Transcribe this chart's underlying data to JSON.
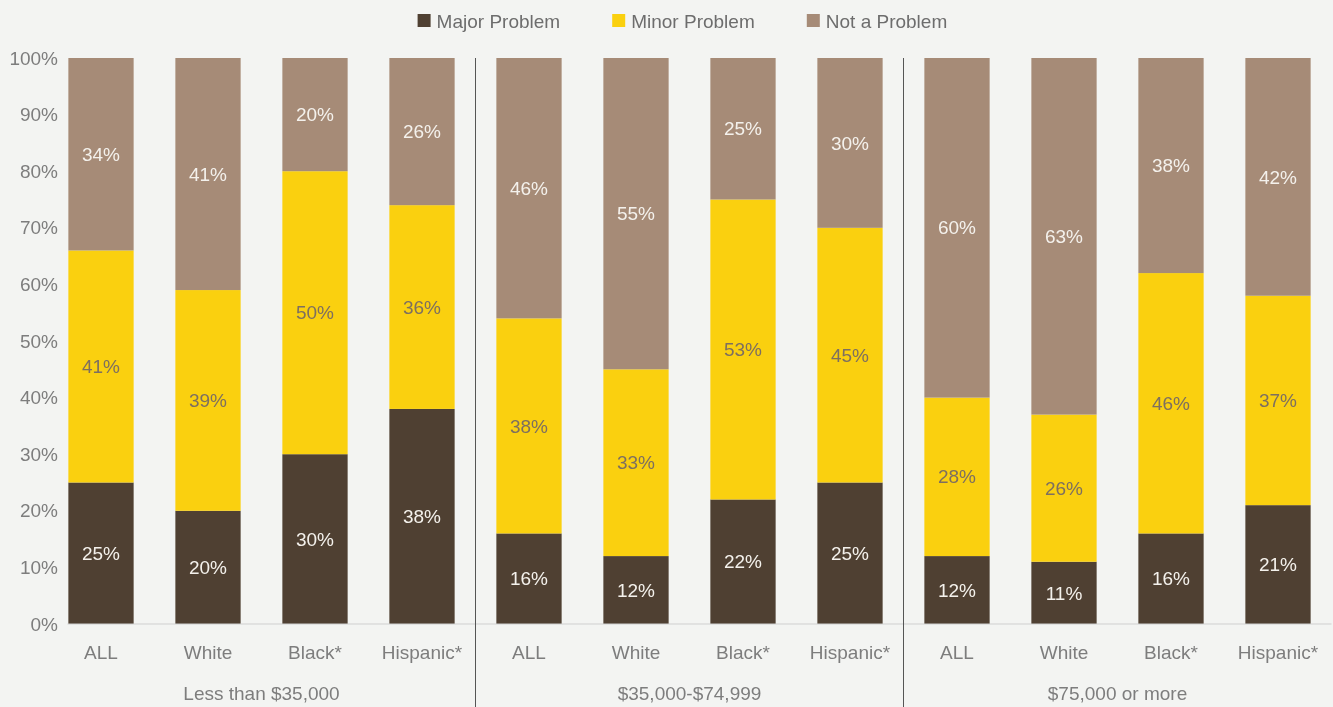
{
  "chart_data": {
    "type": "bar",
    "stacked": true,
    "categories": [
      "ALL",
      "White",
      "Black*",
      "Hispanic*",
      "ALL",
      "White",
      "Black*",
      "Hispanic*",
      "ALL",
      "White",
      "Black*",
      "Hispanic*"
    ],
    "series": [
      {
        "name": "Major Problem",
        "color": "#4f4032",
        "values": [
          25,
          20,
          30,
          38,
          16,
          12,
          22,
          25,
          12,
          11,
          16,
          21
        ]
      },
      {
        "name": "Minor Problem",
        "color": "#fad00f",
        "values": [
          41,
          39,
          50,
          36,
          38,
          33,
          53,
          45,
          28,
          26,
          46,
          37
        ]
      },
      {
        "name": "Not a Problem",
        "color": "#a68b77",
        "values": [
          34,
          41,
          20,
          26,
          46,
          55,
          25,
          30,
          60,
          63,
          38,
          42
        ]
      }
    ],
    "ylim": [
      0,
      100
    ],
    "yticks": [
      {
        "value": 0,
        "label": "0%"
      },
      {
        "value": 10,
        "label": "10%"
      },
      {
        "value": 20,
        "label": "20%"
      },
      {
        "value": 30,
        "label": "30%"
      },
      {
        "value": 40,
        "label": "40%"
      },
      {
        "value": 50,
        "label": "50%"
      },
      {
        "value": 60,
        "label": "60%"
      },
      {
        "value": 70,
        "label": "70%"
      },
      {
        "value": 80,
        "label": "80%"
      },
      {
        "value": 90,
        "label": "90%"
      },
      {
        "value": 100,
        "label": "100%"
      }
    ],
    "value_labels": [
      [
        "25%",
        "20%",
        "30%",
        "38%",
        "16%",
        "12%",
        "22%",
        "25%",
        "12%",
        "11%",
        "16%",
        "21%"
      ],
      [
        "41%",
        "39%",
        "50%",
        "36%",
        "38%",
        "33%",
        "53%",
        "45%",
        "28%",
        "26%",
        "46%",
        "37%"
      ],
      [
        "34%",
        "41%",
        "20%",
        "26%",
        "46%",
        "55%",
        "25%",
        "30%",
        "60%",
        "63%",
        "38%",
        "42%"
      ]
    ],
    "annotations": [
      "Less than $35,000",
      "$35,000-$74,999",
      "$75,000 or more"
    ],
    "legend": "top",
    "grid": false
  }
}
